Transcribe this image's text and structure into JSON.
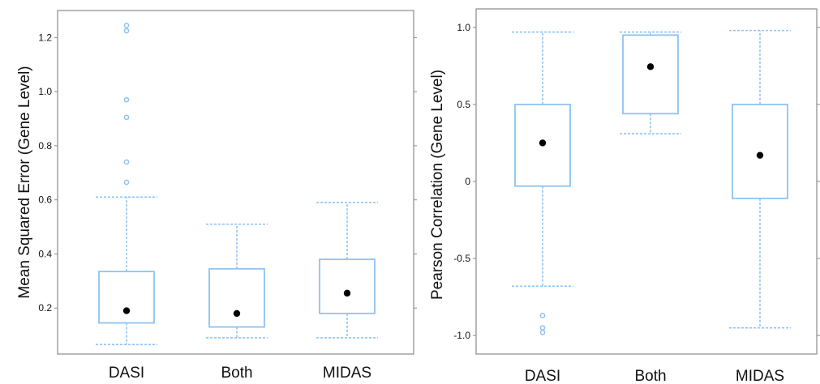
{
  "colors": {
    "box": "#8fc3f2",
    "mean": "#000000",
    "frame": "#8a8a8a"
  },
  "chart_data": [
    {
      "type": "box",
      "ylabel": "Mean Squared Error (Gene Level)",
      "ylim": [
        0.03,
        1.3
      ],
      "yticks": [
        0.2,
        0.4,
        0.6,
        0.8,
        1.0,
        1.2
      ],
      "ytick_labels": [
        "0.2",
        "0.4",
        "0.6",
        "0.8",
        "1.0",
        "1.2"
      ],
      "categories": [
        "DASI",
        "Both",
        "MIDAS"
      ],
      "boxes": [
        {
          "q1": 0.145,
          "q3": 0.335,
          "whisker_low": 0.065,
          "whisker_high": 0.61,
          "mean": 0.19,
          "outliers": [
            0.665,
            0.74,
            0.905,
            0.97,
            1.225,
            1.245
          ]
        },
        {
          "q1": 0.13,
          "q3": 0.345,
          "whisker_low": 0.09,
          "whisker_high": 0.51,
          "mean": 0.18,
          "outliers": []
        },
        {
          "q1": 0.18,
          "q3": 0.38,
          "whisker_low": 0.09,
          "whisker_high": 0.59,
          "mean": 0.255,
          "outliers": []
        }
      ]
    },
    {
      "type": "box",
      "ylabel": "Pearson Correlation (Gene Level)",
      "ylim": [
        -1.12,
        1.12
      ],
      "yticks": [
        -1.0,
        -0.5,
        0,
        0.5,
        1.0
      ],
      "ytick_labels": [
        "-1.0",
        "-0.5",
        "0",
        "0.5",
        "1.0"
      ],
      "categories": [
        "DASI",
        "Both",
        "MIDAS"
      ],
      "boxes": [
        {
          "q1": -0.03,
          "q3": 0.5,
          "whisker_low": -0.68,
          "whisker_high": 0.97,
          "mean": 0.25,
          "outliers": [
            -0.87,
            -0.95,
            -0.98
          ]
        },
        {
          "q1": 0.44,
          "q3": 0.95,
          "whisker_low": 0.31,
          "whisker_high": 0.97,
          "mean": 0.745,
          "outliers": []
        },
        {
          "q1": -0.11,
          "q3": 0.5,
          "whisker_low": -0.95,
          "whisker_high": 0.98,
          "mean": 0.17,
          "outliers": []
        }
      ]
    }
  ]
}
